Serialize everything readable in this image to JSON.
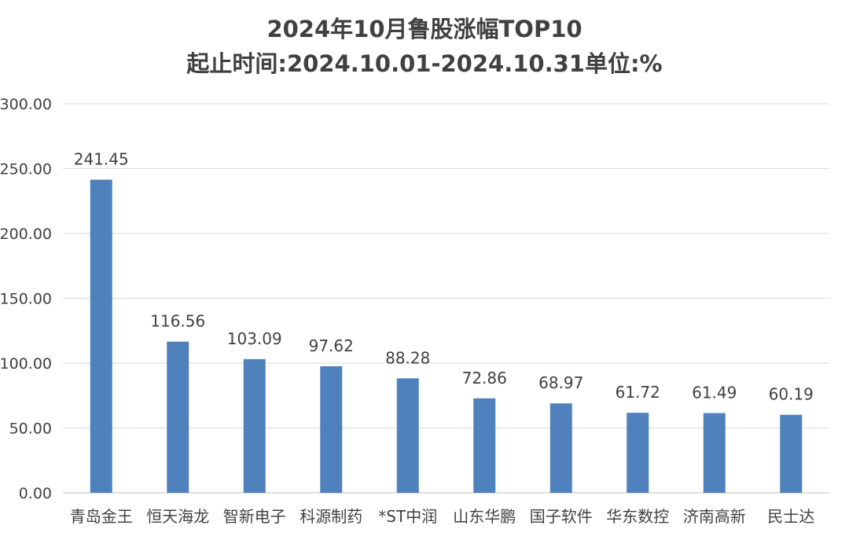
{
  "chart_data": {
    "type": "bar",
    "title": "2024年10月鲁股涨幅TOP10",
    "subtitle": "起止时间:2024.10.01-2024.10.31单位:%",
    "xlabel": "",
    "ylabel": "",
    "ylim": [
      0,
      300
    ],
    "y_ticks": [
      "0.00",
      "50.00",
      "100.00",
      "150.00",
      "200.00",
      "250.00",
      "300.00"
    ],
    "grid": true,
    "legend": "none",
    "categories": [
      "青岛金王",
      "恒天海龙",
      "智新电子",
      "科源制药",
      "*ST中润",
      "山东华鹏",
      "国子软件",
      "华东数控",
      "济南高新",
      "民士达"
    ],
    "values": [
      241.45,
      116.56,
      103.09,
      97.62,
      88.28,
      72.86,
      68.97,
      61.72,
      61.49,
      60.19
    ],
    "value_labels": [
      "241.45",
      "116.56",
      "103.09",
      "97.62",
      "88.28",
      "72.86",
      "68.97",
      "61.72",
      "61.49",
      "60.19"
    ],
    "bar_color": "#4f81bd",
    "grid_color": "#d9d9d9",
    "text_color": "#404040"
  }
}
